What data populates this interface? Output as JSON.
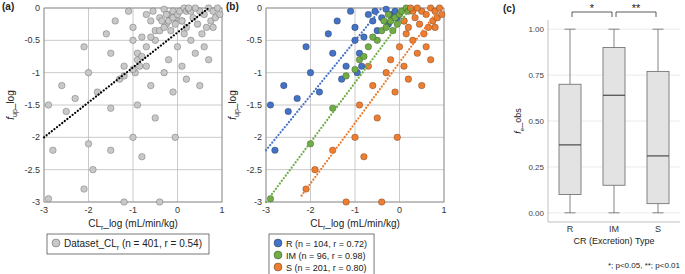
{
  "chart_data": [
    {
      "type": "scatter",
      "panel_label": "(a)",
      "xlabel": [
        {
          "text": "CL"
        },
        {
          "text": "r",
          "sub": true
        },
        {
          "text": "_log (mL/min/kg)"
        }
      ],
      "ylabel": [
        {
          "text": "f",
          "italic": true
        },
        {
          "text": "up",
          "sub": true
        },
        {
          "text": "_log"
        }
      ],
      "xlim": [
        -3,
        1
      ],
      "ylim": [
        -3,
        0
      ],
      "xticks": [
        -3,
        -2,
        -1,
        0,
        1
      ],
      "yticks": [
        0,
        -0.5,
        -1,
        -1.5,
        -2,
        -2.5,
        -3
      ],
      "grid": true,
      "legend": "below",
      "series": [
        {
          "name": [
            {
              "text": "Dataset_CL"
            },
            {
              "text": "r",
              "sub": true
            },
            {
              "text": " (n = 401, r = 0.54)"
            }
          ],
          "color": "#c8c8c8",
          "marker": "circle",
          "x": [
            -2.9,
            -2.8,
            -2.5,
            -2.3,
            -2.0,
            -1.8,
            -1.5,
            -1.2,
            -1.0,
            -1.0,
            -0.9,
            -0.8,
            -0.7,
            -0.6,
            -0.55,
            -0.5,
            -0.4,
            -0.3,
            -0.25,
            -0.2,
            -0.1,
            -0.05,
            -1.4,
            -1.6,
            -2.1,
            -2.6,
            -1.1,
            -0.85,
            -0.95,
            -1.3,
            -2.9,
            -2.0,
            -1.5,
            -1.0,
            -0.9,
            -0.7,
            -0.5,
            -0.4,
            -0.3,
            -0.2,
            -0.15,
            -0.1,
            0.0,
            0.05,
            0.1,
            0.15,
            0.2,
            -0.25,
            -0.05,
            -0.6,
            -0.8,
            -1.2,
            0.25,
            -0.35,
            -2.1,
            -1.9,
            -1.5,
            -1.2,
            -1.0,
            -0.9,
            -0.8,
            -0.6,
            -0.5,
            -0.4,
            -0.3,
            -0.2,
            -0.1,
            0.0,
            0.1,
            0.15,
            0.2,
            0.3,
            0.35,
            0.4,
            0.45,
            0.5,
            0.55,
            0.6,
            0.65,
            0.7,
            0.75,
            0.8,
            0.85,
            0.9,
            0.95,
            0.3,
            0.4,
            0.6,
            0.2,
            -0.05,
            0.5,
            -0.7,
            0.7,
            0.1,
            0.25,
            0.8
          ],
          "y": [
            -1.5,
            -2.2,
            -1.6,
            -1.4,
            -1.0,
            -1.3,
            -0.7,
            -0.9,
            -0.5,
            -0.3,
            -0.7,
            -0.45,
            -0.1,
            -0.2,
            -0.05,
            -0.35,
            -0.15,
            -0.02,
            -0.25,
            -0.1,
            -0.05,
            -0.15,
            -0.2,
            -0.4,
            -0.6,
            -1.2,
            -0.05,
            -0.9,
            -1.0,
            -1.1,
            -2.95,
            -2.1,
            -1.55,
            -0.95,
            -0.8,
            -0.6,
            -0.5,
            -0.35,
            -0.3,
            -0.2,
            -0.35,
            -0.15,
            -0.1,
            -0.05,
            -0.2,
            0.0,
            -0.05,
            -0.1,
            -0.25,
            -0.45,
            -0.75,
            -1.05,
            -0.02,
            -0.2,
            -2.8,
            -2.5,
            -2.2,
            -3.0,
            -2.0,
            -1.5,
            -2.3,
            -1.2,
            -1.7,
            -3.0,
            -1.0,
            -0.8,
            -1.3,
            -0.6,
            -0.9,
            -0.4,
            -0.3,
            -0.5,
            -0.15,
            -0.7,
            -0.25,
            -0.05,
            -0.4,
            -0.1,
            -0.3,
            0.0,
            -0.2,
            -0.05,
            -0.15,
            0.0,
            -0.1,
            -0.05,
            0.0,
            -0.6,
            -1.1,
            -2.0,
            -1.2,
            -0.9,
            -0.8,
            -0.2,
            0.0,
            -0.3
          ],
          "trend": {
            "x": [
              -3,
              0.7
            ],
            "y": [
              -2.0,
              0
            ],
            "color": "#000000",
            "line_style": "dotted"
          }
        }
      ]
    },
    {
      "type": "scatter",
      "panel_label": "(b)",
      "xlabel": [
        {
          "text": "CL"
        },
        {
          "text": "r",
          "sub": true
        },
        {
          "text": "_log (mL/min/kg)"
        }
      ],
      "ylabel": [
        {
          "text": "f",
          "italic": true
        },
        {
          "text": "up",
          "sub": true
        },
        {
          "text": "_log"
        }
      ],
      "xlim": [
        -3,
        1
      ],
      "ylim": [
        -3,
        0
      ],
      "xticks": [
        -3,
        -2,
        -1,
        0,
        1
      ],
      "yticks": [
        0,
        -0.5,
        -1,
        -1.5,
        -2,
        -2.5,
        -3
      ],
      "grid": true,
      "legend": "below",
      "series": [
        {
          "name": "R (n = 104, r = 0.72)",
          "color": "#4472c4",
          "marker": "circle",
          "x": [
            -2.9,
            -2.8,
            -2.5,
            -2.3,
            -2.0,
            -1.8,
            -1.5,
            -1.2,
            -1.0,
            -1.0,
            -0.9,
            -0.8,
            -0.7,
            -0.6,
            -0.55,
            -0.5,
            -0.4,
            -0.3,
            -0.25,
            -0.2,
            -0.1,
            -0.05,
            -1.4,
            -1.6,
            -2.1,
            -2.6,
            -1.1,
            -0.85,
            -0.95,
            -1.3
          ],
          "y": [
            -1.5,
            -2.2,
            -1.6,
            -1.4,
            -1.0,
            -1.3,
            -0.7,
            -0.9,
            -0.5,
            -0.3,
            -0.7,
            -0.45,
            -0.1,
            -0.2,
            -0.05,
            -0.35,
            -0.15,
            -0.02,
            -0.25,
            -0.1,
            -0.05,
            -0.15,
            -0.2,
            -0.4,
            -0.6,
            -1.2,
            -0.05,
            -0.9,
            -1.0,
            -1.1
          ],
          "trend": {
            "x": [
              -3,
              -0.4
            ],
            "y": [
              -2.2,
              0
            ],
            "color": "#4472c4",
            "line_style": "dotted"
          }
        },
        {
          "name": "IM (n = 96, r = 0.98)",
          "color": "#70ad47",
          "marker": "circle",
          "x": [
            -2.9,
            -2.0,
            -1.5,
            -1.0,
            -0.9,
            -0.7,
            -0.5,
            -0.4,
            -0.3,
            -0.2,
            -0.15,
            -0.1,
            0.0,
            0.05,
            0.1,
            0.15,
            0.2,
            -0.25,
            -0.05,
            -0.6,
            -0.8,
            -1.2,
            0.25,
            -0.35
          ],
          "y": [
            -2.95,
            -2.1,
            -1.55,
            -0.95,
            -0.8,
            -0.6,
            -0.5,
            -0.35,
            -0.3,
            -0.2,
            -0.35,
            -0.15,
            -0.1,
            -0.05,
            -0.2,
            0.0,
            -0.05,
            -0.1,
            -0.25,
            -0.45,
            -0.75,
            -1.05,
            -0.02,
            -0.2
          ],
          "trend": {
            "x": [
              -3,
              0.25
            ],
            "y": [
              -3,
              0
            ],
            "color": "#70ad47",
            "line_style": "dotted"
          }
        },
        {
          "name": "S (n = 201, r = 0.80)",
          "color": "#ed7d31",
          "marker": "circle",
          "x": [
            -2.1,
            -1.9,
            -1.5,
            -1.2,
            -1.0,
            -0.9,
            -0.8,
            -0.6,
            -0.5,
            -0.4,
            -0.3,
            -0.2,
            -0.1,
            0.0,
            0.1,
            0.15,
            0.2,
            0.3,
            0.35,
            0.4,
            0.45,
            0.5,
            0.55,
            0.6,
            0.65,
            0.7,
            0.75,
            0.8,
            0.85,
            0.9,
            0.95,
            0.3,
            0.4,
            0.6,
            0.2,
            -0.05,
            0.5,
            -0.7,
            0.7,
            0.1,
            0.25,
            0.8
          ],
          "y": [
            -2.8,
            -2.5,
            -2.2,
            -3.0,
            -2.0,
            -1.5,
            -2.3,
            -1.2,
            -1.7,
            -3.0,
            -1.0,
            -0.8,
            -1.3,
            -0.6,
            -0.9,
            -0.4,
            -0.3,
            -0.5,
            -0.15,
            -0.7,
            -0.25,
            -0.05,
            -0.4,
            -0.1,
            -0.3,
            0.0,
            -0.2,
            -0.05,
            -0.15,
            0.0,
            -0.1,
            -0.05,
            0.0,
            -0.6,
            -1.1,
            -2.0,
            -1.2,
            -0.9,
            -0.8,
            -0.2,
            0.0,
            -0.3
          ],
          "trend": {
            "x": [
              -2.2,
              0.9
            ],
            "y": [
              -2.9,
              0
            ],
            "color": "#ed7d31",
            "line_style": "dotted"
          }
        }
      ]
    },
    {
      "type": "box",
      "panel_label": "(c)",
      "categories": [
        "R",
        "IM",
        "S"
      ],
      "xlabel": "CR (Excretion) Type",
      "ylabel": [
        {
          "text": "f",
          "italic": true
        },
        {
          "text": "e",
          "sub": true
        },
        {
          "text": "_obs"
        }
      ],
      "ylim": [
        -0.05,
        1.05
      ],
      "yticks": [
        {
          "value": 0,
          "label": "0.00"
        },
        {
          "value": 0.25,
          "label": "0.25"
        },
        {
          "value": 0.5,
          "label": "0.50"
        },
        {
          "value": 0.75,
          "label": "0.75"
        },
        {
          "value": 1,
          "label": "1.00"
        }
      ],
      "grid": true,
      "color": "#e3e3e3",
      "min": [
        0,
        0,
        0
      ],
      "q1": [
        0.1,
        0.15,
        0.05
      ],
      "median": [
        0.37,
        0.64,
        0.31
      ],
      "q3": [
        0.7,
        0.9,
        0.77
      ],
      "max": [
        1,
        1,
        1
      ],
      "annotations": [
        {
          "text": "*",
          "between": [
            "R",
            "IM"
          ]
        },
        {
          "text": "**",
          "between": [
            "IM",
            "S"
          ]
        }
      ],
      "footnote": "*; p<0.05, **; p<0.01"
    }
  ]
}
